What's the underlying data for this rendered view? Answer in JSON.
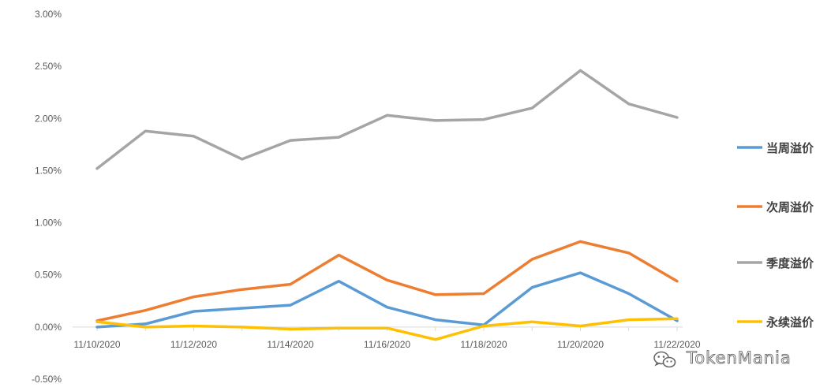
{
  "chart_data": {
    "type": "line",
    "title": "",
    "xlabel": "",
    "ylabel": "",
    "x": [
      "11/10/2020",
      "11/11/2020",
      "11/12/2020",
      "11/13/2020",
      "11/14/2020",
      "11/15/2020",
      "11/16/2020",
      "11/17/2020",
      "11/18/2020",
      "11/19/2020",
      "11/20/2020",
      "11/21/2020",
      "11/22/2020"
    ],
    "x_tick_labels": [
      "11/10/2020",
      "11/12/2020",
      "11/14/2020",
      "11/16/2020",
      "11/18/2020",
      "11/20/2020",
      "11/22/2020"
    ],
    "y_tick_labels": [
      "3.00%",
      "2.50%",
      "2.00%",
      "1.50%",
      "1.00%",
      "0.50%",
      "0.00%",
      "-0.50%"
    ],
    "y_unit": "percent",
    "ylim": [
      -0.5,
      3.0
    ],
    "grid": false,
    "legend_position": "right",
    "series": [
      {
        "name": "当周溢价",
        "color": "#5B9BD5",
        "values": [
          0.0,
          0.03,
          0.15,
          0.18,
          0.21,
          0.44,
          0.19,
          0.07,
          0.02,
          0.38,
          0.52,
          0.32,
          0.06
        ]
      },
      {
        "name": "次周溢价",
        "color": "#ED7D31",
        "values": [
          0.06,
          0.16,
          0.29,
          0.36,
          0.41,
          0.69,
          0.45,
          0.31,
          0.32,
          0.65,
          0.82,
          0.71,
          0.44
        ]
      },
      {
        "name": "季度溢价",
        "color": "#A5A5A5",
        "values": [
          1.52,
          1.88,
          1.83,
          1.61,
          1.79,
          1.82,
          2.03,
          1.98,
          1.99,
          2.1,
          2.46,
          2.14,
          2.01
        ]
      },
      {
        "name": "永续溢价",
        "color": "#FFC000",
        "values": [
          0.05,
          0.0,
          0.01,
          0.0,
          -0.02,
          -0.01,
          -0.01,
          -0.12,
          0.01,
          0.05,
          0.01,
          0.07,
          0.08
        ]
      }
    ]
  },
  "watermark": {
    "text": "TokenMania",
    "icon": "wechat-icon"
  }
}
